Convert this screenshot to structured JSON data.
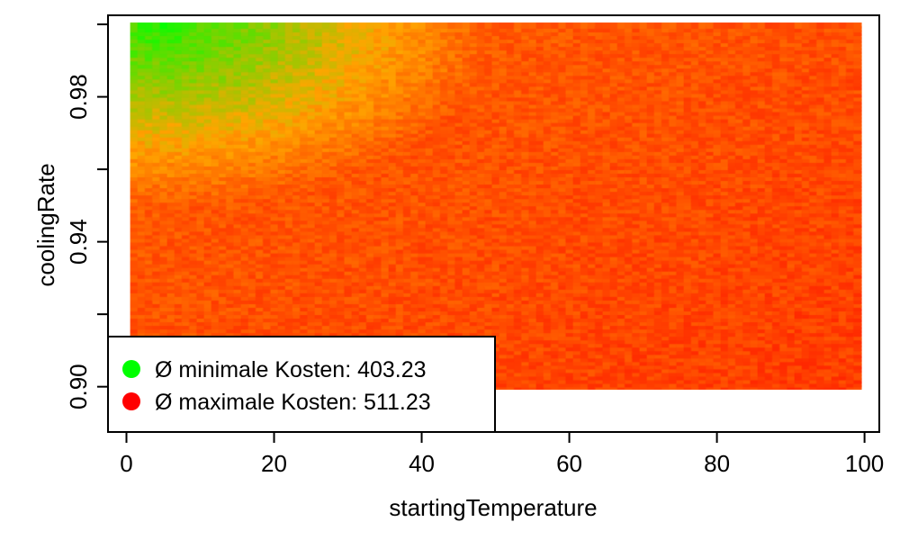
{
  "chart_data": {
    "type": "heatmap",
    "xlabel": "startingTemperature",
    "ylabel": "coolingRate",
    "xlim": [
      -2.5,
      102
    ],
    "ylim": [
      0.8875,
      1.0025
    ],
    "x_ticks": [
      {
        "value": 0,
        "label": "0"
      },
      {
        "value": 20,
        "label": "20"
      },
      {
        "value": 40,
        "label": "40"
      },
      {
        "value": 60,
        "label": "60"
      },
      {
        "value": 80,
        "label": "80"
      },
      {
        "value": 100,
        "label": "100"
      }
    ],
    "y_ticks": [
      {
        "value": 0.9,
        "label": "0.90"
      },
      {
        "value": 0.92,
        "label": ""
      },
      {
        "value": 0.94,
        "label": "0.94"
      },
      {
        "value": 0.96,
        "label": ""
      },
      {
        "value": 0.98,
        "label": "0.98"
      },
      {
        "value": 1.0,
        "label": ""
      }
    ],
    "grid": {
      "x_start": 1,
      "x_end": 99,
      "x_step": 1,
      "y_start": 0.9,
      "y_end": 1.0,
      "y_step": 0.001
    },
    "color_low": "#00ff00",
    "color_mid": "#ffa500",
    "color_high": "#ff0000",
    "min_cost": 403.23,
    "max_cost": 511.23,
    "legend_position": "bottom-left",
    "legend": [
      {
        "label": "Ø minimale Kosten: 403.23",
        "color": "#00ff00"
      },
      {
        "label": "Ø maximale Kosten: 511.23",
        "color": "#ff0000"
      }
    ]
  }
}
